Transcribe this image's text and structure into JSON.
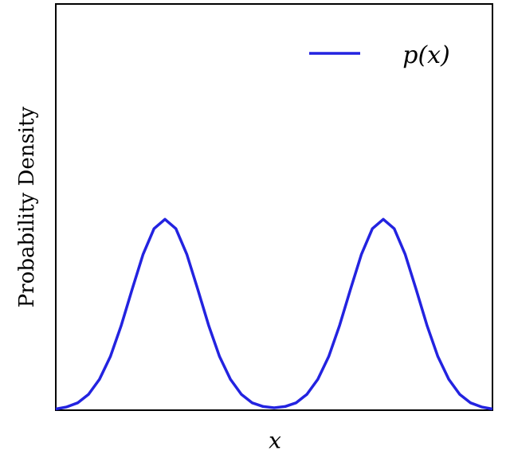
{
  "chart_data": {
    "type": "line",
    "y_label": "Probability Density",
    "x_label": "x",
    "legend": "upper right",
    "xlim": [
      0,
      1
    ],
    "ylim": [
      0,
      1
    ],
    "x": [
      0,
      0.025,
      0.05,
      0.075,
      0.1,
      0.125,
      0.15,
      0.175,
      0.2,
      0.225,
      0.25,
      0.275,
      0.3,
      0.325,
      0.35,
      0.375,
      0.4,
      0.425,
      0.45,
      0.475,
      0.5,
      0.525,
      0.55,
      0.575,
      0.6,
      0.625,
      0.65,
      0.675,
      0.7,
      0.725,
      0.75,
      0.775,
      0.8,
      0.825,
      0.85,
      0.875,
      0.9,
      0.925,
      0.95,
      0.975,
      1
    ],
    "series": [
      {
        "name": "p(x)",
        "color": "#2323e0",
        "values": [
          0.003,
          0.008,
          0.018,
          0.039,
          0.076,
          0.132,
          0.209,
          0.298,
          0.384,
          0.447,
          0.47,
          0.447,
          0.384,
          0.298,
          0.209,
          0.132,
          0.076,
          0.039,
          0.018,
          0.009,
          0.006,
          0.009,
          0.018,
          0.039,
          0.076,
          0.132,
          0.209,
          0.298,
          0.384,
          0.447,
          0.47,
          0.447,
          0.384,
          0.298,
          0.209,
          0.132,
          0.076,
          0.039,
          0.018,
          0.008,
          0.003
        ]
      }
    ]
  }
}
